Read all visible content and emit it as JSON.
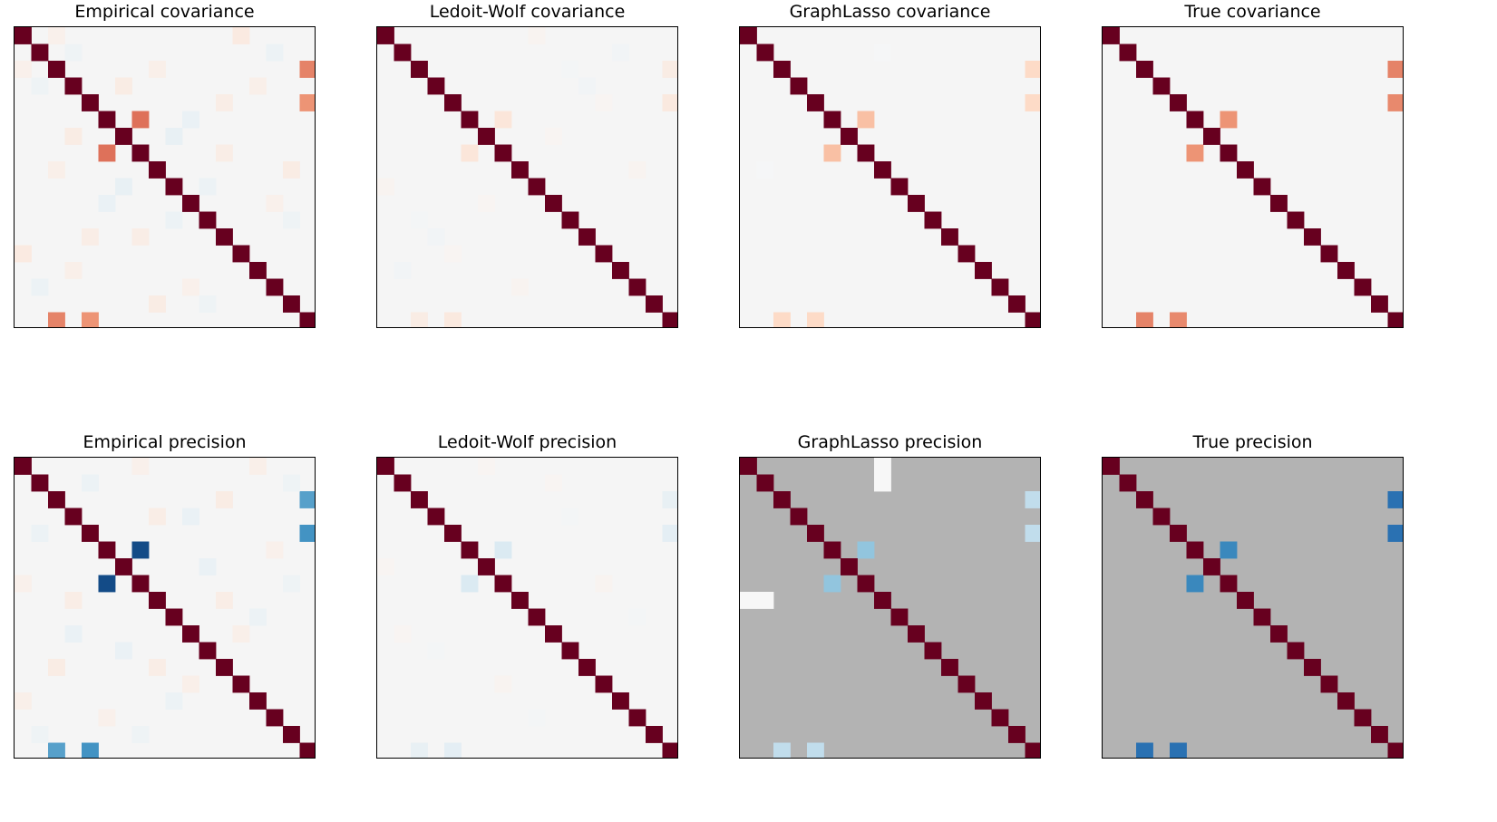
{
  "colors": {
    "diagonal": "#67001f",
    "neutral": "#f5f5f5",
    "masked_background": "#b3b3b3",
    "frame": "#000000"
  },
  "chart_data": [
    {
      "type": "heatmap",
      "title": "Empirical covariance",
      "size": 18,
      "diagonal": 1.0,
      "vrange": [
        -1,
        1
      ],
      "background": null,
      "cells": [
        [
          5,
          7,
          0.55
        ],
        [
          4,
          17,
          0.45
        ],
        [
          2,
          17,
          0.5
        ],
        [
          0,
          2,
          0.05
        ],
        [
          1,
          3,
          -0.05
        ],
        [
          3,
          6,
          0.08
        ],
        [
          6,
          9,
          -0.08
        ],
        [
          2,
          8,
          0.06
        ],
        [
          5,
          10,
          -0.07
        ],
        [
          7,
          12,
          0.07
        ],
        [
          3,
          14,
          0.06
        ],
        [
          4,
          12,
          0.07
        ],
        [
          0,
          13,
          0.09
        ],
        [
          9,
          11,
          -0.06
        ],
        [
          1,
          15,
          -0.06
        ],
        [
          8,
          16,
          0.08
        ],
        [
          10,
          15,
          0.05
        ],
        [
          11,
          16,
          -0.05
        ]
      ]
    },
    {
      "type": "heatmap",
      "title": "Ledoit-Wolf covariance",
      "size": 18,
      "diagonal": 1.0,
      "vrange": [
        -1,
        1
      ],
      "background": null,
      "cells": [
        [
          5,
          7,
          0.12
        ],
        [
          4,
          17,
          0.1
        ],
        [
          2,
          17,
          0.08
        ],
        [
          0,
          9,
          0.03
        ],
        [
          3,
          12,
          -0.03
        ],
        [
          1,
          14,
          -0.03
        ],
        [
          6,
          10,
          0.02
        ],
        [
          8,
          15,
          0.03
        ],
        [
          2,
          11,
          -0.02
        ],
        [
          4,
          13,
          0.02
        ]
      ]
    },
    {
      "type": "heatmap",
      "title": "GraphLasso covariance",
      "size": 18,
      "diagonal": 1.0,
      "vrange": [
        -1,
        1
      ],
      "background": null,
      "cells": [
        [
          5,
          7,
          0.3
        ],
        [
          4,
          17,
          0.2
        ],
        [
          2,
          17,
          0.2
        ],
        [
          1,
          8,
          -0.01
        ]
      ]
    },
    {
      "type": "heatmap",
      "title": "True covariance",
      "size": 18,
      "diagonal": 1.0,
      "vrange": [
        -1,
        1
      ],
      "background": null,
      "cells": [
        [
          5,
          7,
          0.45
        ],
        [
          4,
          17,
          0.48
        ],
        [
          2,
          17,
          0.5
        ]
      ]
    },
    {
      "type": "heatmap",
      "title": "Empirical precision",
      "size": 18,
      "diagonal": 1.0,
      "vrange": [
        -1,
        1
      ],
      "background": null,
      "cells": [
        [
          5,
          7,
          -0.9
        ],
        [
          4,
          17,
          -0.6
        ],
        [
          2,
          17,
          -0.55
        ],
        [
          0,
          7,
          0.05
        ],
        [
          1,
          4,
          -0.06
        ],
        [
          3,
          8,
          0.07
        ],
        [
          6,
          11,
          -0.07
        ],
        [
          2,
          12,
          0.08
        ],
        [
          9,
          14,
          -0.06
        ],
        [
          10,
          13,
          0.06
        ],
        [
          5,
          15,
          0.05
        ],
        [
          1,
          16,
          -0.05
        ],
        [
          3,
          10,
          -0.07
        ],
        [
          0,
          14,
          0.06
        ],
        [
          7,
          16,
          -0.05
        ],
        [
          8,
          12,
          0.07
        ]
      ]
    },
    {
      "type": "heatmap",
      "title": "Ledoit-Wolf precision",
      "size": 18,
      "diagonal": 1.0,
      "vrange": [
        -1,
        1
      ],
      "background": null,
      "cells": [
        [
          5,
          7,
          -0.15
        ],
        [
          4,
          17,
          -0.1
        ],
        [
          2,
          17,
          -0.08
        ],
        [
          0,
          6,
          0.02
        ],
        [
          3,
          11,
          -0.02
        ],
        [
          7,
          13,
          0.03
        ],
        [
          1,
          10,
          0.02
        ],
        [
          9,
          15,
          -0.02
        ]
      ]
    },
    {
      "type": "heatmap",
      "title": "GraphLasso precision",
      "size": 18,
      "diagonal": 1.0,
      "vrange": [
        -1,
        1
      ],
      "background": "masked",
      "cells": [
        [
          5,
          7,
          -0.4
        ],
        [
          4,
          17,
          -0.25
        ],
        [
          2,
          17,
          -0.25
        ],
        [
          0,
          8,
          0.0
        ],
        [
          1,
          8,
          0.0
        ]
      ]
    },
    {
      "type": "heatmap",
      "title": "True precision",
      "size": 18,
      "diagonal": 1.0,
      "vrange": [
        -1,
        1
      ],
      "background": "masked",
      "cells": [
        [
          5,
          7,
          -0.65
        ],
        [
          4,
          17,
          -0.75
        ],
        [
          2,
          17,
          -0.75
        ]
      ]
    }
  ]
}
